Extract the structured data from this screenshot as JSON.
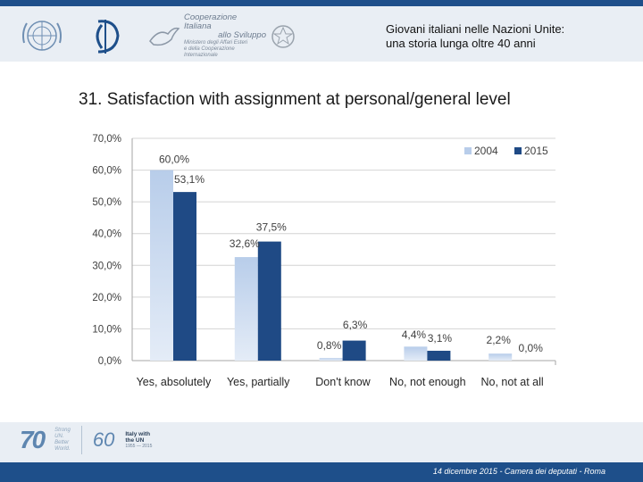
{
  "header": {
    "title_line1": "Giovani italiani nelle Nazioni Unite:",
    "title_line2": "una storia lunga oltre 40 anni",
    "coop_line1": "Cooperazione Italiana",
    "coop_line2": "allo Sviluppo",
    "coop_line3": "Ministero degli Affari Esteri",
    "coop_line4": "e della Cooperazione Internazionale"
  },
  "slide": {
    "title": "31. Satisfaction with assignment at personal/general level"
  },
  "chart_data": {
    "type": "bar",
    "title": "",
    "xlabel": "",
    "ylabel": "",
    "categories": [
      "Yes, absolutely",
      "Yes, partially",
      "Don't know",
      "No, not enough",
      "No, not at all"
    ],
    "series": [
      {
        "name": "2004",
        "values": [
          60.0,
          32.6,
          0.8,
          4.4,
          2.2
        ],
        "labels": [
          "60,0%",
          "32,6%",
          "0,8%",
          "4,4%",
          "2,2%"
        ]
      },
      {
        "name": "2015",
        "values": [
          53.1,
          37.5,
          6.3,
          3.1,
          0.0
        ],
        "labels": [
          "53,1%",
          "37,5%",
          "6,3%",
          "3,1%",
          "0,0%"
        ]
      }
    ],
    "ylim": [
      0,
      70
    ],
    "yticks": [
      0,
      10,
      20,
      30,
      40,
      50,
      60,
      70
    ],
    "ytick_labels": [
      "0,0%",
      "10,0%",
      "20,0%",
      "30,0%",
      "40,0%",
      "50,0%",
      "60,0%",
      "70,0%"
    ],
    "grid": true,
    "legend_position": "top-right",
    "colors": {
      "2004": "#b8cdea",
      "2015": "#1f4a85"
    }
  },
  "footer": {
    "text": "14 dicembre 2015 - Camera dei deputati - Roma",
    "logo_seventy": "70",
    "logo_seventy_small_1": "Strong",
    "logo_seventy_small_2": "UN.",
    "logo_seventy_small_3": "Better",
    "logo_seventy_small_4": "World.",
    "logo_sixty": "60",
    "logo_sixty_line1": "Italy with",
    "logo_sixty_line2": "the UN",
    "logo_sixty_years": "1955 — 2015"
  }
}
